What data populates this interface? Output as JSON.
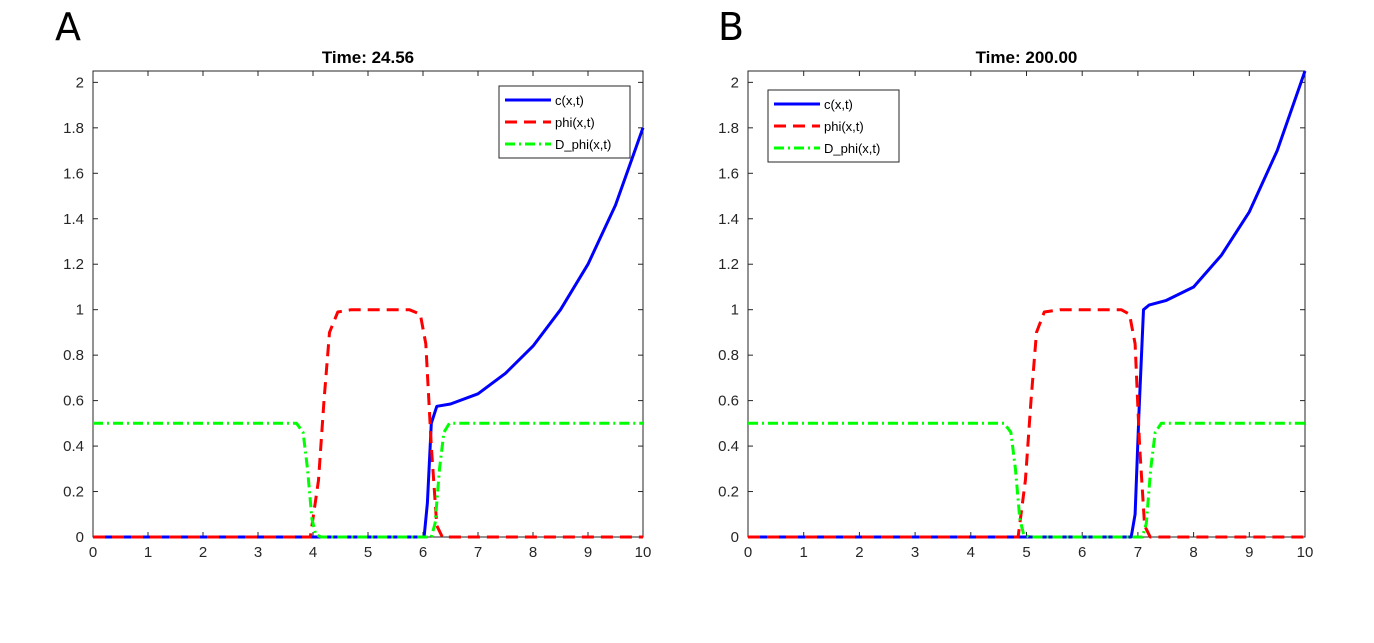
{
  "chart_data": [
    {
      "type": "line",
      "panel_label": "A",
      "title": "Time: 24.56",
      "xlabel": "",
      "ylabel": "",
      "xlim": [
        0,
        10
      ],
      "ylim": [
        0,
        2.05
      ],
      "x_ticks": [
        "0",
        "1",
        "2",
        "3",
        "4",
        "5",
        "6",
        "7",
        "8",
        "9",
        "10"
      ],
      "y_ticks": [
        "0",
        "0.2",
        "0.4",
        "0.6",
        "0.8",
        "1",
        "1.2",
        "1.4",
        "1.6",
        "1.8",
        "2"
      ],
      "legend_position": "top-right",
      "series": [
        {
          "name": "c(x,t)",
          "color": "#0000ff",
          "style": "solid",
          "x": [
            0,
            6.02,
            6.08,
            6.15,
            6.25,
            6.5,
            7,
            7.5,
            8,
            8.5,
            9,
            9.5,
            10
          ],
          "y": [
            0,
            0,
            0.15,
            0.5,
            0.575,
            0.585,
            0.63,
            0.72,
            0.84,
            1.0,
            1.2,
            1.46,
            1.8
          ]
        },
        {
          "name": "phi(x,t)",
          "color": "#ff0000",
          "style": "dashed",
          "x": [
            0,
            3.95,
            4.1,
            4.2,
            4.3,
            4.45,
            4.7,
            5.75,
            5.95,
            6.05,
            6.15,
            6.25,
            6.35,
            10
          ],
          "y": [
            0,
            0,
            0.25,
            0.6,
            0.9,
            0.99,
            1.0,
            1.0,
            0.98,
            0.85,
            0.4,
            0.05,
            0,
            0
          ]
        },
        {
          "name": "D_phi(x,t)",
          "color": "#00ff00",
          "style": "dashdot",
          "x": [
            0,
            3.7,
            3.82,
            3.9,
            3.98,
            4.05,
            4.15,
            6.15,
            6.22,
            6.3,
            6.38,
            6.48,
            10
          ],
          "y": [
            0.5,
            0.5,
            0.46,
            0.3,
            0.08,
            0.01,
            0,
            0,
            0.06,
            0.3,
            0.46,
            0.5,
            0.5
          ]
        }
      ]
    },
    {
      "type": "line",
      "panel_label": "B",
      "title": "Time: 200.00",
      "xlabel": "",
      "ylabel": "",
      "xlim": [
        0,
        10
      ],
      "ylim": [
        0,
        2.05
      ],
      "x_ticks": [
        "0",
        "1",
        "2",
        "3",
        "4",
        "5",
        "6",
        "7",
        "8",
        "9",
        "10"
      ],
      "y_ticks": [
        "0",
        "0.2",
        "0.4",
        "0.6",
        "0.8",
        "1",
        "1.2",
        "1.4",
        "1.6",
        "1.8",
        "2"
      ],
      "legend_position": "top-left",
      "series": [
        {
          "name": "c(x,t)",
          "color": "#0000ff",
          "style": "solid",
          "x": [
            0,
            6.88,
            6.95,
            7.02,
            7.1,
            7.2,
            7.5,
            8,
            8.5,
            9,
            9.5,
            10
          ],
          "y": [
            0,
            0,
            0.1,
            0.55,
            1.0,
            1.02,
            1.04,
            1.1,
            1.24,
            1.43,
            1.7,
            2.05
          ]
        },
        {
          "name": "phi(x,t)",
          "color": "#ff0000",
          "style": "dashed",
          "x": [
            0,
            4.85,
            4.98,
            5.08,
            5.18,
            5.32,
            5.6,
            6.7,
            6.85,
            6.95,
            7.03,
            7.12,
            7.22,
            10
          ],
          "y": [
            0,
            0,
            0.25,
            0.6,
            0.9,
            0.99,
            1.0,
            1.0,
            0.98,
            0.85,
            0.4,
            0.05,
            0,
            0
          ]
        },
        {
          "name": "D_phi(x,t)",
          "color": "#00ff00",
          "style": "dashdot",
          "x": [
            0,
            4.6,
            4.72,
            4.8,
            4.88,
            4.95,
            5.05,
            7.08,
            7.15,
            7.23,
            7.31,
            7.42,
            10
          ],
          "y": [
            0.5,
            0.5,
            0.46,
            0.3,
            0.08,
            0.01,
            0,
            0,
            0.06,
            0.3,
            0.46,
            0.5,
            0.5
          ]
        }
      ]
    }
  ]
}
